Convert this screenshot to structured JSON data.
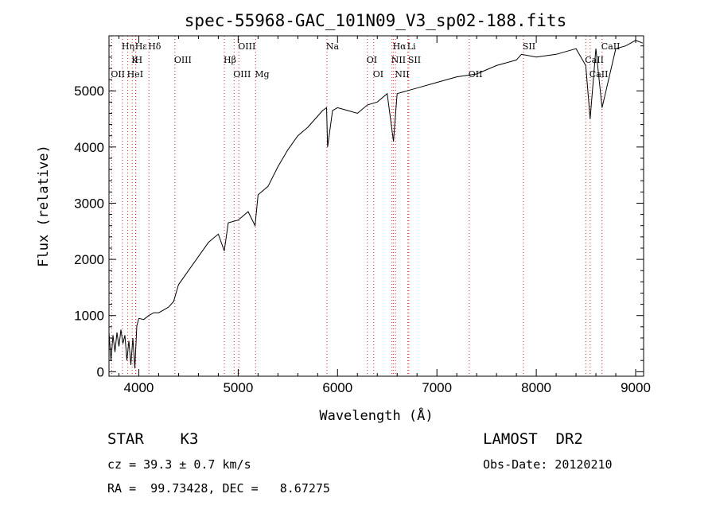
{
  "chart_data": {
    "type": "line",
    "title": "spec-55968-GAC_101N09_V3_sp02-188.fits",
    "xlabel": "Wavelength (Å)",
    "ylabel": "Flux (relative)",
    "xlim": [
      3700,
      9080
    ],
    "ylim": [
      -80,
      5980
    ],
    "x_ticks": [
      4000,
      5000,
      6000,
      7000,
      8000,
      9000
    ],
    "y_ticks": [
      0,
      1000,
      2000,
      3000,
      4000,
      5000
    ],
    "grid": false,
    "series": [
      {
        "x": [
          3700,
          3720,
          3740,
          3760,
          3780,
          3800,
          3820,
          3840,
          3860,
          3880,
          3900,
          3920,
          3940,
          3960,
          3980,
          4000,
          4050,
          4100,
          4150,
          4200,
          4250,
          4300,
          4350,
          4400,
          4500,
          4600,
          4700,
          4800,
          4860,
          4900,
          5000,
          5100,
          5170,
          5200,
          5300,
          5400,
          5500,
          5600,
          5700,
          5800,
          5850,
          5890,
          5900,
          5950,
          6000,
          6100,
          6200,
          6300,
          6400,
          6500,
          6563,
          6600,
          6700,
          6800,
          7000,
          7200,
          7400,
          7600,
          7800,
          7850,
          8000,
          8200,
          8400,
          8498,
          8542,
          8600,
          8662,
          8800,
          8900,
          9000,
          9070
        ],
        "y": [
          700,
          200,
          650,
          350,
          700,
          450,
          750,
          500,
          650,
          200,
          550,
          120,
          600,
          60,
          820,
          950,
          930,
          1000,
          1050,
          1050,
          1100,
          1150,
          1250,
          1550,
          1800,
          2050,
          2300,
          2450,
          2150,
          2650,
          2700,
          2850,
          2600,
          3150,
          3300,
          3650,
          3950,
          4200,
          4350,
          4550,
          4650,
          4700,
          4000,
          4650,
          4700,
          4650,
          4600,
          4750,
          4800,
          4950,
          4100,
          4950,
          5000,
          5050,
          5150,
          5250,
          5300,
          5450,
          5550,
          5650,
          5600,
          5650,
          5750,
          5450,
          4500,
          5750,
          4700,
          5750,
          5800,
          5900,
          5850
        ]
      }
    ],
    "emission_lines": [
      {
        "name": "Hε",
        "wl": 3970
      },
      {
        "name": "K",
        "wl": 3934
      },
      {
        "name": "HeI",
        "wl": 3889
      },
      {
        "name": "Hδ",
        "wl": 4102
      },
      {
        "name": "OIII",
        "wl": 4363
      },
      {
        "name": "OII",
        "wl": 3727
      },
      {
        "name": "Hη",
        "wl": 3835
      },
      {
        "name": "H",
        "wl": 3968
      },
      {
        "name": "OIII",
        "wl": 4959
      },
      {
        "name": "OIII",
        "wl": 5007
      },
      {
        "name": "Hβ",
        "wl": 4861
      },
      {
        "name": "Mg",
        "wl": 5175
      },
      {
        "name": "Na",
        "wl": 5893
      },
      {
        "name": "OI",
        "wl": 6300
      },
      {
        "name": "OI",
        "wl": 6364
      },
      {
        "name": "Hα",
        "wl": 6563
      },
      {
        "name": "NII",
        "wl": 6548
      },
      {
        "name": "NII",
        "wl": 6584
      },
      {
        "name": "Li",
        "wl": 6708
      },
      {
        "name": "SII",
        "wl": 6717
      },
      {
        "name": "OII",
        "wl": 7325
      },
      {
        "name": "SII",
        "wl": 7870
      },
      {
        "name": "CaII",
        "wl": 8498
      },
      {
        "name": "CaII",
        "wl": 8542
      },
      {
        "name": "CaII",
        "wl": 8662
      }
    ]
  },
  "info": {
    "class": "STAR    K3",
    "survey": "LAMOST  DR2",
    "cz": "cz = 39.3 ± 0.7 km/s",
    "obs_date": "Obs-Date: 20120210",
    "coords": "RA =  99.73428, DEC =   8.67275"
  }
}
